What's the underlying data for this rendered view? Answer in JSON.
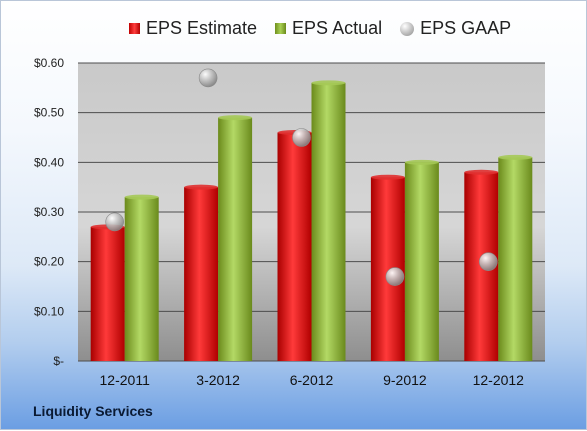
{
  "chart_data": {
    "type": "bar",
    "categories": [
      "12-2011",
      "3-2012",
      "6-2012",
      "9-2012",
      "12-2012"
    ],
    "series": [
      {
        "name": "EPS Estimate",
        "kind": "bar",
        "values": [
          0.27,
          0.35,
          0.46,
          0.37,
          0.38
        ],
        "color": "#cc1111"
      },
      {
        "name": "EPS Actual",
        "kind": "bar",
        "values": [
          0.33,
          0.49,
          0.56,
          0.4,
          0.41
        ],
        "color": "#93b83a"
      },
      {
        "name": "EPS GAAP",
        "kind": "marker",
        "values": [
          0.28,
          0.57,
          0.45,
          0.17,
          0.2
        ],
        "color": "#a8a8a8"
      }
    ],
    "ylim": [
      0,
      0.6
    ],
    "yticks": [
      0,
      0.1,
      0.2,
      0.3,
      0.4,
      0.5,
      0.6
    ],
    "ytick_labels": [
      "$-",
      "$0.10",
      "$0.20",
      "$0.30",
      "$0.40",
      "$0.50",
      "$0.60"
    ],
    "grid": true,
    "legend_position": "top",
    "xlabel": "",
    "ylabel": ""
  },
  "footer": {
    "company": "Liquidity Services"
  }
}
